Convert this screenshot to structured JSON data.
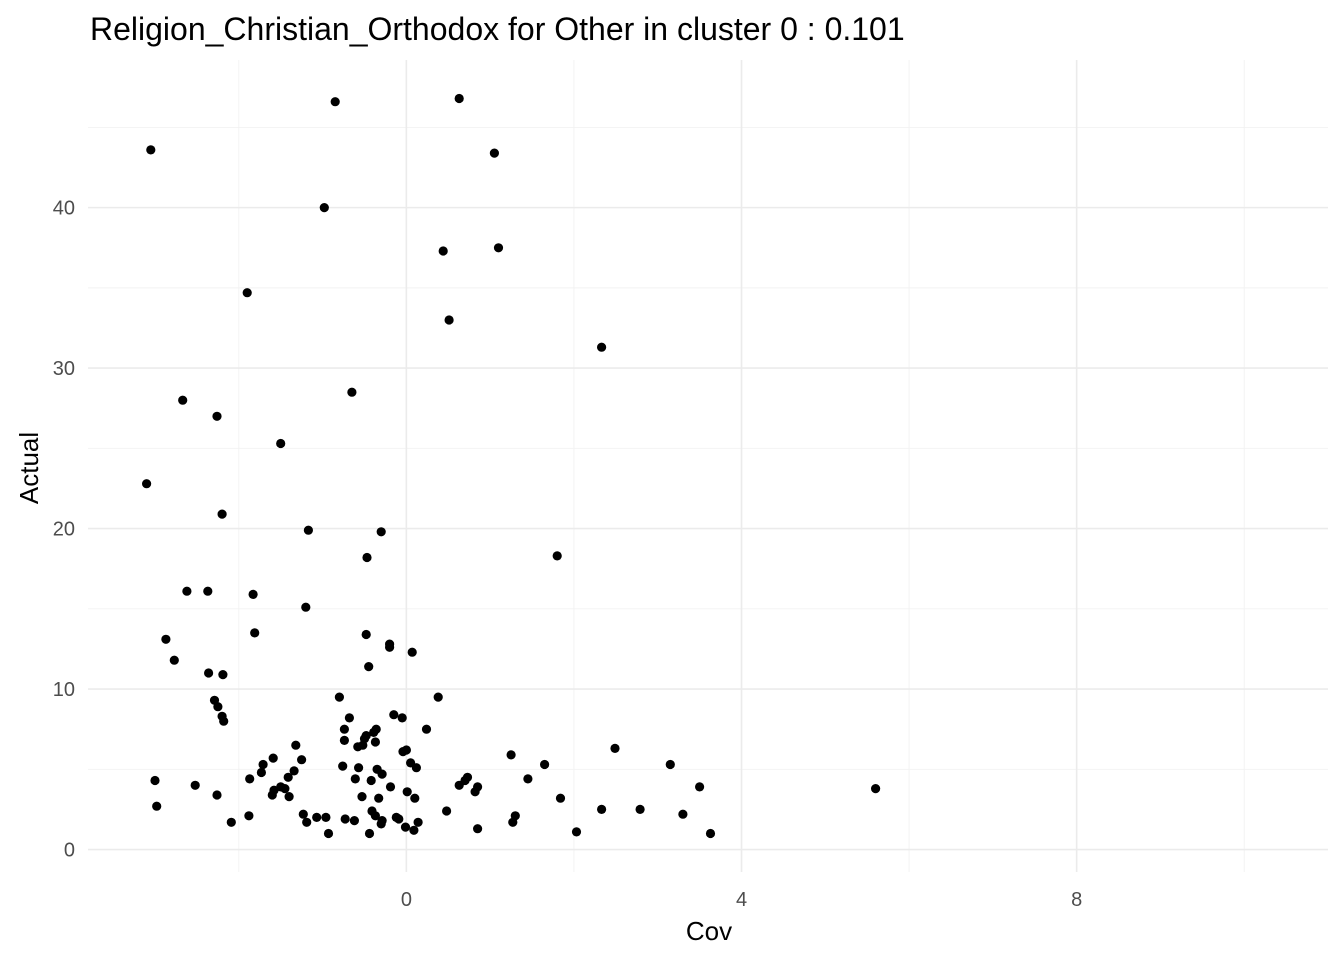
{
  "chart_data": {
    "type": "scatter",
    "title": "Religion_Christian_Orthodox for Other in cluster 0 : 0.101",
    "xlabel": "Cov",
    "ylabel": "Actual",
    "xlim": [
      -3.8,
      11.0
    ],
    "ylim": [
      -1.4,
      49.2
    ],
    "x_ticks": [
      0,
      4,
      8
    ],
    "x_tick_labels": [
      "0",
      "4",
      "8"
    ],
    "x_minor_ticks": [
      -2,
      2,
      6,
      10
    ],
    "y_ticks": [
      0,
      10,
      20,
      30,
      40
    ],
    "y_tick_labels": [
      "0",
      "10",
      "20",
      "30",
      "40"
    ],
    "y_minor_ticks": [
      5,
      15,
      25,
      35,
      45
    ],
    "grid": true,
    "legend": "none",
    "point_color": "#000000",
    "points": [
      {
        "x": -3.05,
        "y": 43.6
      },
      {
        "x": -0.85,
        "y": 46.6
      },
      {
        "x": 0.63,
        "y": 46.8
      },
      {
        "x": 1.05,
        "y": 43.4
      },
      {
        "x": -0.98,
        "y": 40.0
      },
      {
        "x": 0.44,
        "y": 37.3
      },
      {
        "x": 1.1,
        "y": 37.5
      },
      {
        "x": -1.9,
        "y": 34.7
      },
      {
        "x": 0.51,
        "y": 33.0
      },
      {
        "x": 2.33,
        "y": 31.3
      },
      {
        "x": -2.67,
        "y": 28.0
      },
      {
        "x": -0.65,
        "y": 28.5
      },
      {
        "x": -2.26,
        "y": 27.0
      },
      {
        "x": -1.5,
        "y": 25.3
      },
      {
        "x": -3.1,
        "y": 22.8
      },
      {
        "x": -2.2,
        "y": 20.9
      },
      {
        "x": -1.17,
        "y": 19.9
      },
      {
        "x": -0.3,
        "y": 19.8
      },
      {
        "x": -0.47,
        "y": 18.2
      },
      {
        "x": 1.8,
        "y": 18.3
      },
      {
        "x": -2.62,
        "y": 16.1
      },
      {
        "x": -2.37,
        "y": 16.1
      },
      {
        "x": -1.83,
        "y": 15.9
      },
      {
        "x": -1.2,
        "y": 15.1
      },
      {
        "x": -2.87,
        "y": 13.1
      },
      {
        "x": -1.81,
        "y": 13.5
      },
      {
        "x": -0.48,
        "y": 13.4
      },
      {
        "x": -0.2,
        "y": 12.8
      },
      {
        "x": -0.2,
        "y": 12.6
      },
      {
        "x": 0.07,
        "y": 12.3
      },
      {
        "x": -2.77,
        "y": 11.8
      },
      {
        "x": -0.45,
        "y": 11.4
      },
      {
        "x": -2.36,
        "y": 11.0
      },
      {
        "x": -2.19,
        "y": 10.9
      },
      {
        "x": -0.8,
        "y": 9.5
      },
      {
        "x": 0.38,
        "y": 9.5
      },
      {
        "x": -2.29,
        "y": 9.3
      },
      {
        "x": -2.25,
        "y": 8.9
      },
      {
        "x": -2.2,
        "y": 8.3
      },
      {
        "x": -2.18,
        "y": 8.0
      },
      {
        "x": -0.68,
        "y": 8.2
      },
      {
        "x": -0.15,
        "y": 8.4
      },
      {
        "x": -0.05,
        "y": 8.2
      },
      {
        "x": -0.74,
        "y": 7.5
      },
      {
        "x": -0.36,
        "y": 7.5
      },
      {
        "x": -0.39,
        "y": 7.3
      },
      {
        "x": 0.24,
        "y": 7.5
      },
      {
        "x": -0.48,
        "y": 7.1
      },
      {
        "x": -0.5,
        "y": 6.9
      },
      {
        "x": -0.74,
        "y": 6.8
      },
      {
        "x": -0.37,
        "y": 6.7
      },
      {
        "x": -0.58,
        "y": 6.4
      },
      {
        "x": -0.52,
        "y": 6.5
      },
      {
        "x": -1.32,
        "y": 6.5
      },
      {
        "x": -0.04,
        "y": 6.1
      },
      {
        "x": 0.0,
        "y": 6.2
      },
      {
        "x": 2.49,
        "y": 6.3
      },
      {
        "x": 1.25,
        "y": 5.9
      },
      {
        "x": -1.59,
        "y": 5.7
      },
      {
        "x": -1.25,
        "y": 5.6
      },
      {
        "x": 0.05,
        "y": 5.4
      },
      {
        "x": 0.12,
        "y": 5.1
      },
      {
        "x": -1.71,
        "y": 5.3
      },
      {
        "x": -0.76,
        "y": 5.2
      },
      {
        "x": -0.57,
        "y": 5.1
      },
      {
        "x": -0.35,
        "y": 5.0
      },
      {
        "x": 1.65,
        "y": 5.3
      },
      {
        "x": 3.15,
        "y": 5.3
      },
      {
        "x": -1.73,
        "y": 4.8
      },
      {
        "x": -1.34,
        "y": 4.9
      },
      {
        "x": -0.29,
        "y": 4.7
      },
      {
        "x": -1.41,
        "y": 4.5
      },
      {
        "x": -0.42,
        "y": 4.3
      },
      {
        "x": -0.61,
        "y": 4.4
      },
      {
        "x": -1.87,
        "y": 4.4
      },
      {
        "x": 0.73,
        "y": 4.5
      },
      {
        "x": 0.7,
        "y": 4.3
      },
      {
        "x": 1.45,
        "y": 4.4
      },
      {
        "x": -3.0,
        "y": 4.3
      },
      {
        "x": -2.52,
        "y": 4.0
      },
      {
        "x": 0.63,
        "y": 4.0
      },
      {
        "x": -1.5,
        "y": 3.9
      },
      {
        "x": -1.45,
        "y": 3.8
      },
      {
        "x": -1.58,
        "y": 3.7
      },
      {
        "x": -0.19,
        "y": 3.9
      },
      {
        "x": 0.85,
        "y": 3.9
      },
      {
        "x": 0.82,
        "y": 3.6
      },
      {
        "x": 3.5,
        "y": 3.9
      },
      {
        "x": 5.6,
        "y": 3.8
      },
      {
        "x": -1.6,
        "y": 3.4
      },
      {
        "x": -1.4,
        "y": 3.3
      },
      {
        "x": -0.53,
        "y": 3.3
      },
      {
        "x": -0.33,
        "y": 3.2
      },
      {
        "x": 0.01,
        "y": 3.6
      },
      {
        "x": 0.1,
        "y": 3.2
      },
      {
        "x": 1.84,
        "y": 3.2
      },
      {
        "x": -2.26,
        "y": 3.4
      },
      {
        "x": -2.98,
        "y": 2.7
      },
      {
        "x": 0.48,
        "y": 2.4
      },
      {
        "x": 2.33,
        "y": 2.5
      },
      {
        "x": 2.79,
        "y": 2.5
      },
      {
        "x": 3.3,
        "y": 2.2
      },
      {
        "x": -0.41,
        "y": 2.4
      },
      {
        "x": -0.37,
        "y": 2.1
      },
      {
        "x": -0.12,
        "y": 2.0
      },
      {
        "x": -0.09,
        "y": 1.9
      },
      {
        "x": 1.3,
        "y": 2.1
      },
      {
        "x": -1.88,
        "y": 2.1
      },
      {
        "x": -1.23,
        "y": 2.2
      },
      {
        "x": -1.07,
        "y": 2.0
      },
      {
        "x": -0.96,
        "y": 2.0
      },
      {
        "x": -0.73,
        "y": 1.9
      },
      {
        "x": -0.62,
        "y": 1.8
      },
      {
        "x": -0.29,
        "y": 1.8
      },
      {
        "x": -0.3,
        "y": 1.6
      },
      {
        "x": -1.19,
        "y": 1.7
      },
      {
        "x": 0.14,
        "y": 1.7
      },
      {
        "x": 1.27,
        "y": 1.7
      },
      {
        "x": -2.09,
        "y": 1.7
      },
      {
        "x": -0.01,
        "y": 1.4
      },
      {
        "x": 0.09,
        "y": 1.2
      },
      {
        "x": 0.85,
        "y": 1.3
      },
      {
        "x": 2.03,
        "y": 1.1
      },
      {
        "x": -0.93,
        "y": 1.0
      },
      {
        "x": -0.44,
        "y": 1.0
      },
      {
        "x": 3.63,
        "y": 1.0
      }
    ]
  }
}
